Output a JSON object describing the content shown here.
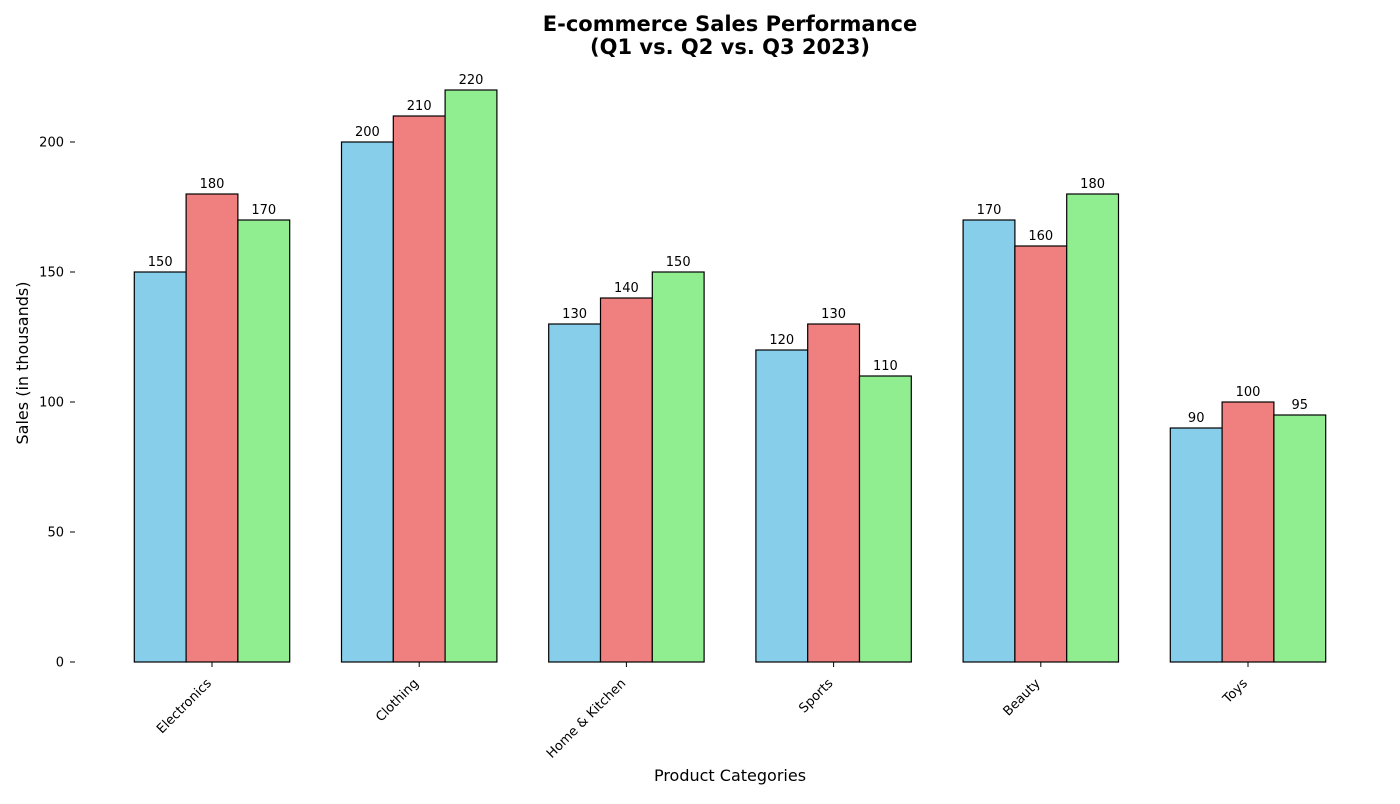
{
  "chart_data": {
    "type": "bar",
    "title_lines": [
      "E-commerce Sales Performance",
      "(Q1 vs. Q2 vs. Q3 2023)"
    ],
    "xlabel": "Product Categories",
    "ylabel": "Sales (in thousands)",
    "categories": [
      "Electronics",
      "Clothing",
      "Home & Kitchen",
      "Sports",
      "Beauty",
      "Toys"
    ],
    "series": [
      {
        "values": [
          150,
          200,
          130,
          120,
          170,
          90
        ],
        "color": "#87CEEB"
      },
      {
        "values": [
          180,
          210,
          140,
          130,
          160,
          100
        ],
        "color": "#F08080"
      },
      {
        "values": [
          170,
          220,
          150,
          110,
          180,
          95
        ],
        "color": "#90EE90"
      }
    ],
    "bar_edge_color": "#000000",
    "y_ticks": [
      0,
      50,
      100,
      150,
      200
    ],
    "ylim": [
      0,
      220
    ],
    "grid": false,
    "legend": "none",
    "data_labels": true,
    "x_tick_rotation_deg": 45
  }
}
